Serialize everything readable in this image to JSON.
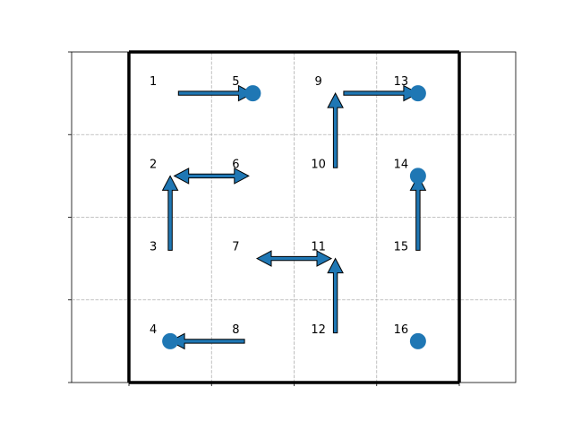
{
  "colors": {
    "arrow_fill": "#1f77b4",
    "arrow_edge": "#000000",
    "dot": "#1f77b4",
    "grid": "#b0b0b0",
    "frame": "#000000"
  },
  "grid": {
    "rows": 4,
    "cols": 4,
    "show_gridlines": true,
    "gridline_style": "dashed"
  },
  "cells": [
    {
      "id": 1,
      "label": "1",
      "row": 0,
      "col": 0
    },
    {
      "id": 2,
      "label": "2",
      "row": 1,
      "col": 0
    },
    {
      "id": 3,
      "label": "3",
      "row": 2,
      "col": 0
    },
    {
      "id": 4,
      "label": "4",
      "row": 3,
      "col": 0
    },
    {
      "id": 5,
      "label": "5",
      "row": 0,
      "col": 1
    },
    {
      "id": 6,
      "label": "6",
      "row": 1,
      "col": 1
    },
    {
      "id": 7,
      "label": "7",
      "row": 2,
      "col": 1
    },
    {
      "id": 8,
      "label": "8",
      "row": 3,
      "col": 1
    },
    {
      "id": 9,
      "label": "9",
      "row": 0,
      "col": 2
    },
    {
      "id": 10,
      "label": "10",
      "row": 1,
      "col": 2
    },
    {
      "id": 11,
      "label": "11",
      "row": 2,
      "col": 2
    },
    {
      "id": 12,
      "label": "12",
      "row": 3,
      "col": 2
    },
    {
      "id": 13,
      "label": "13",
      "row": 0,
      "col": 3
    },
    {
      "id": 14,
      "label": "14",
      "row": 1,
      "col": 3
    },
    {
      "id": 15,
      "label": "15",
      "row": 2,
      "col": 3
    },
    {
      "id": 16,
      "label": "16",
      "row": 3,
      "col": 3
    }
  ],
  "transitions": [
    {
      "from": 1,
      "to": 5,
      "type": "single"
    },
    {
      "from": 9,
      "to": 13,
      "type": "single"
    },
    {
      "from": 10,
      "to": 9,
      "type": "single"
    },
    {
      "from": 3,
      "to": 2,
      "type": "single"
    },
    {
      "from": 2,
      "to": 6,
      "type": "double"
    },
    {
      "from": 15,
      "to": 14,
      "type": "single"
    },
    {
      "from": 7,
      "to": 11,
      "type": "double"
    },
    {
      "from": 12,
      "to": 11,
      "type": "single"
    },
    {
      "from": 8,
      "to": 4,
      "type": "single"
    }
  ],
  "terminal_states": [
    5,
    13,
    14,
    4,
    16
  ]
}
